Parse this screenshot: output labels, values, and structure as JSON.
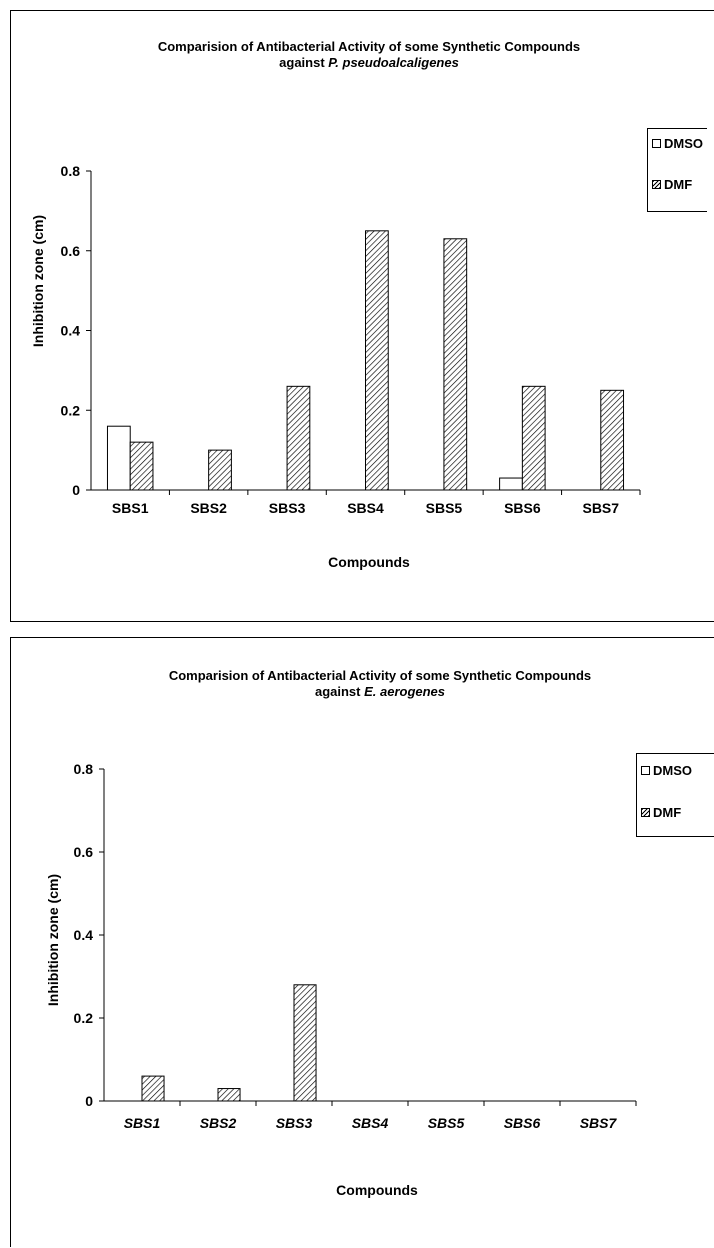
{
  "chart_data": [
    {
      "type": "bar",
      "title_line1": "Comparision of Antibacterial  Activity of some  Synthetic Compounds",
      "title_line2_prefix": "against ",
      "title_line2_italic": "P. pseudoalcaligenes",
      "xlabel": "Compounds",
      "ylabel": "Inhibition zone (cm)",
      "ylim": [
        0,
        0.8
      ],
      "yticks": [
        "0",
        "0.2",
        "0.4",
        "0.6",
        "0.8"
      ],
      "tick_italic": false,
      "categories": [
        "SBS1",
        "SBS2",
        "SBS3",
        "SBS4",
        "SBS5",
        "SBS6",
        "SBS7"
      ],
      "series": [
        {
          "name": "DMSO",
          "values": [
            0.16,
            0,
            0,
            0,
            0,
            0.03,
            0
          ]
        },
        {
          "name": "DMF",
          "values": [
            0.12,
            0.1,
            0.26,
            0.65,
            0.63,
            0.26,
            0.25
          ]
        }
      ],
      "legend": "right"
    },
    {
      "type": "bar",
      "title_line1": "Comparision of Antibacterial  Activity of some  Synthetic Compounds",
      "title_line2_prefix": "against ",
      "title_line2_italic": "E. aerogenes",
      "xlabel": "Compounds",
      "ylabel": "Inhibition zone (cm)",
      "ylim": [
        0,
        0.8
      ],
      "yticks": [
        "0",
        "0.2",
        "0.4",
        "0.6",
        "0.8"
      ],
      "tick_italic": true,
      "categories": [
        "SBS1",
        "SBS2",
        "SBS3",
        "SBS4",
        "SBS5",
        "SBS6",
        "SBS7"
      ],
      "series": [
        {
          "name": "DMSO",
          "values": [
            0,
            0,
            0,
            0,
            0,
            0,
            0
          ]
        },
        {
          "name": "DMF",
          "values": [
            0.06,
            0.03,
            0.28,
            0,
            0,
            0,
            0
          ]
        }
      ],
      "legend": "right"
    }
  ]
}
